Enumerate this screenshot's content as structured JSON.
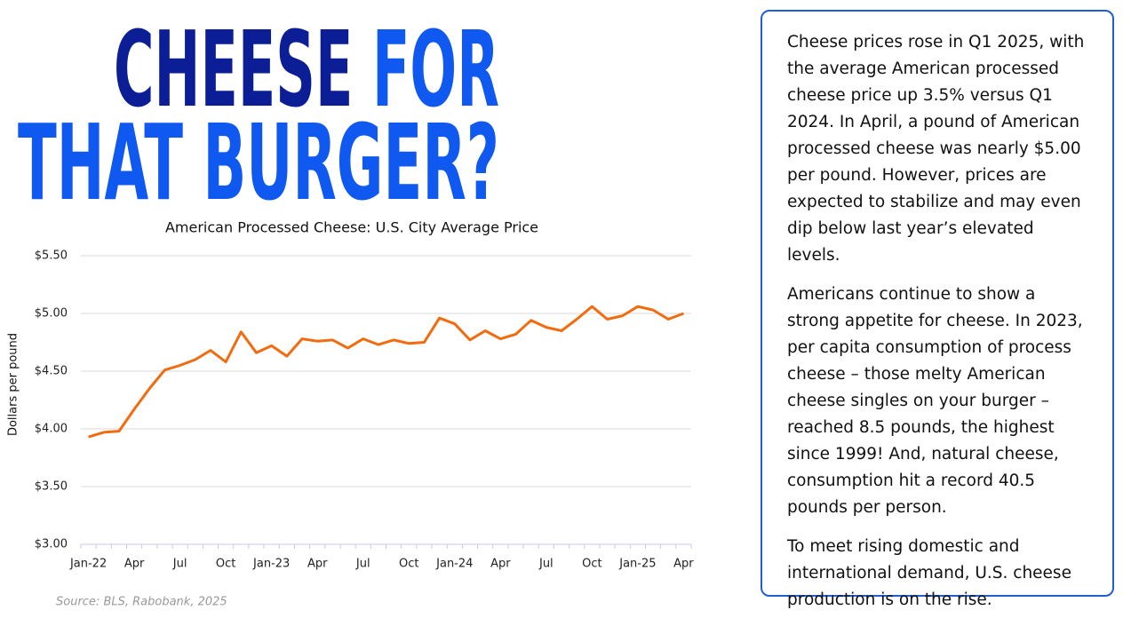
{
  "headline": {
    "word1": "CHEESE",
    "word2": "FOR",
    "line2": "THAT BURGER?"
  },
  "chart_data": {
    "type": "line",
    "title": "American Processed Cheese: U.S. City Average Price",
    "y_label": "Dollars per pound",
    "categories": [
      "Jan-22",
      null,
      null,
      "Apr",
      null,
      null,
      "Jul",
      null,
      null,
      "Oct",
      null,
      null,
      "Jan-23",
      null,
      null,
      "Apr",
      null,
      null,
      "Jul",
      null,
      null,
      "Oct",
      null,
      null,
      "Jan-24",
      null,
      null,
      "Apr",
      null,
      null,
      "Jul",
      null,
      null,
      "Oct",
      null,
      null,
      "Jan-25",
      null,
      null,
      "Apr"
    ],
    "series": [
      {
        "name": "American processed cheese",
        "color": "#f26b0f",
        "values": [
          3.93,
          3.97,
          3.98,
          4.17,
          4.35,
          4.51,
          4.55,
          4.6,
          4.68,
          4.58,
          4.84,
          4.66,
          4.72,
          4.63,
          4.78,
          4.76,
          4.77,
          4.7,
          4.78,
          4.73,
          4.77,
          4.74,
          4.75,
          4.96,
          4.91,
          4.77,
          4.85,
          4.78,
          4.82,
          4.94,
          4.88,
          4.85,
          4.95,
          5.06,
          4.95,
          4.98,
          5.06,
          5.03,
          4.95,
          5.0
        ]
      }
    ],
    "ylim": [
      3,
      5.5
    ],
    "yticks": [
      {
        "value": 3,
        "label": "$3.00"
      },
      {
        "value": 3.5,
        "label": "$3.50"
      },
      {
        "value": 4,
        "label": "$4.00"
      },
      {
        "value": 4.5,
        "label": "$4.50"
      },
      {
        "value": 5,
        "label": "$5.00"
      },
      {
        "value": 5.5,
        "label": "$5.50"
      }
    ],
    "grid": true
  },
  "source": "Source: BLS, Rabobank, 2025",
  "text_box": {
    "paragraphs": [
      "Cheese prices rose in Q1 2025, with the average American processed cheese price up 3.5% versus Q1 2024. In April, a pound of American processed cheese was nearly $5.00 per pound. However, prices are expected to stabilize and may even dip below last year’s elevated levels.",
      "Americans continue to show a strong appetite for cheese. In 2023, per capita consumption of process cheese – those melty American cheese singles on your burger – reached 8.5 pounds, the highest since 1999! And, natural cheese, consumption hit a record 40.5 pounds per person.",
      "To meet rising domestic and international demand, U.S. cheese production is on the rise."
    ]
  }
}
